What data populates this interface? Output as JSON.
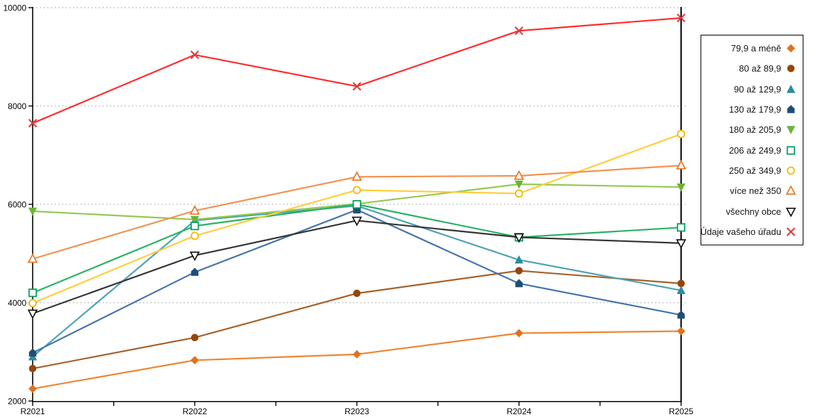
{
  "chart_data": {
    "type": "line",
    "title": "",
    "x_categories": [
      "R2021",
      "R2022",
      "R2023",
      "R2024",
      "R2025"
    ],
    "y_axis": {
      "min": 2000,
      "max": 10000,
      "tick_step": 2000,
      "ticks": [
        2000,
        4000,
        6000,
        8000,
        10000
      ]
    },
    "grid": {
      "horizontal": true,
      "style": "dotted"
    },
    "legend_position": "right",
    "series": [
      {
        "name": "79,9 a méně",
        "marker": "diamond",
        "line_color": "#ED8532",
        "marker_color": "#E2711D",
        "values": [
          2250,
          2830,
          2950,
          3380,
          3420
        ]
      },
      {
        "name": "80 až 89,9",
        "marker": "circle",
        "line_color": "#A5602A",
        "marker_color": "#96460A",
        "values": [
          2660,
          3290,
          4190,
          4650,
          4390
        ]
      },
      {
        "name": "90 až 129,9",
        "marker": "triangle-up",
        "line_color": "#4BA2B3",
        "marker_color": "#2C8C9E",
        "values": [
          2900,
          5670,
          5970,
          4870,
          4250
        ]
      },
      {
        "name": "130 až 179,9",
        "marker": "pentagon",
        "line_color": "#4473A9",
        "marker_color": "#1F4E79",
        "values": [
          2980,
          4620,
          5890,
          4390,
          3750
        ]
      },
      {
        "name": "180 až 205,9",
        "marker": "triangle-down",
        "line_color": "#92C850",
        "marker_color": "#6BB33A",
        "values": [
          5860,
          5690,
          6010,
          6410,
          6350
        ]
      },
      {
        "name": "206 až 249,9",
        "marker": "square-open",
        "line_color": "#27B163",
        "marker_color": "#00A05A",
        "values": [
          4200,
          5560,
          6000,
          5330,
          5530
        ]
      },
      {
        "name": "250 až 349,9",
        "marker": "circle-open",
        "line_color": "#FFCD3C",
        "marker_color": "#F2B705",
        "values": [
          3990,
          5360,
          6290,
          6220,
          7430
        ]
      },
      {
        "name": "více než 350",
        "marker": "triangle-open",
        "line_color": "#F29150",
        "marker_color": "#E97A2C",
        "values": [
          4890,
          5870,
          6560,
          6580,
          6790
        ]
      },
      {
        "name": "všechny obce",
        "marker": "triangle-down-open",
        "line_color": "#333333",
        "marker_color": "#0A0A0A",
        "values": [
          3780,
          4960,
          5670,
          5330,
          5210
        ]
      },
      {
        "name": "Údaje vašeho úřadu",
        "marker": "x",
        "line_color": "#FF2B2B",
        "marker_color": "#DC3A3A",
        "values": [
          7650,
          9040,
          8400,
          9530,
          9790
        ]
      }
    ]
  },
  "colors": {
    "background": "#ffffff",
    "axis": "#000000",
    "gridline": "#b5b5b5"
  }
}
